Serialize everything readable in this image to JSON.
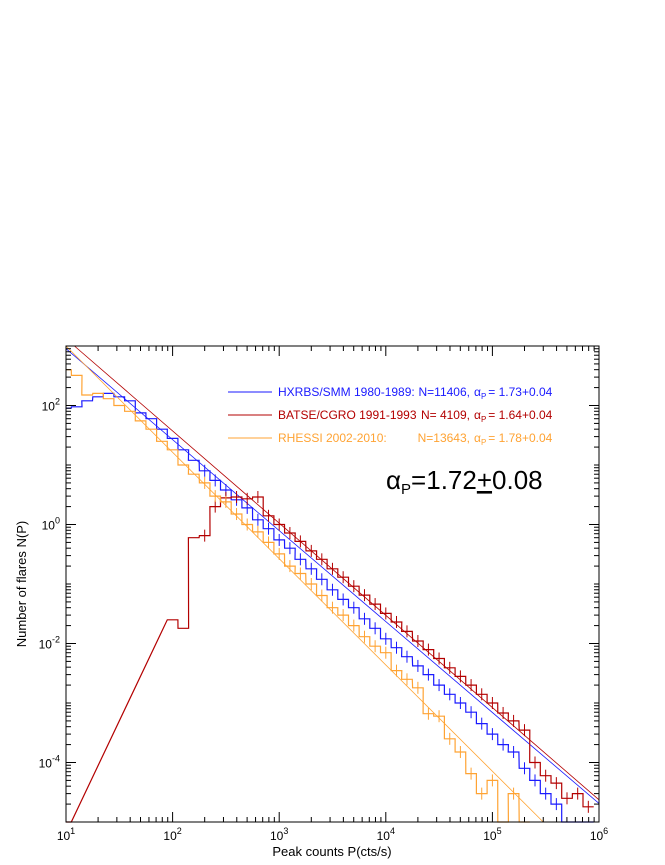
{
  "chart_data": {
    "type": "line",
    "title": "",
    "xlabel": "Peak counts P(cts/s)",
    "ylabel": "Number of flares N(P)",
    "xscale": "log",
    "yscale": "log",
    "xlim": [
      10,
      1000000
    ],
    "ylim": [
      1e-05,
      1000
    ],
    "x_ticks": [
      {
        "value": 10,
        "base": "10",
        "exp": "1"
      },
      {
        "value": 100,
        "base": "10",
        "exp": "2"
      },
      {
        "value": 1000,
        "base": "10",
        "exp": "3"
      },
      {
        "value": 10000,
        "base": "10",
        "exp": "4"
      },
      {
        "value": 100000,
        "base": "10",
        "exp": "5"
      },
      {
        "value": 1000000,
        "base": "10",
        "exp": "6"
      }
    ],
    "y_ticks": [
      {
        "value": 0.0001,
        "base": "10",
        "exp": "-4"
      },
      {
        "value": 0.01,
        "base": "10",
        "exp": "-2"
      },
      {
        "value": 1,
        "base": "10",
        "exp": "0"
      },
      {
        "value": 100,
        "base": "10",
        "exp": "2"
      }
    ],
    "grid": false,
    "legend_position": "top-right",
    "annotation": {
      "alpha": "α",
      "sub": "P",
      "text": "=1.72",
      "pm": "+",
      "value": "0.08"
    },
    "series": [
      {
        "legend_name": "HXRBS/SMM 1980-1989:",
        "legend_n": "N=11406,",
        "legend_alpha": "α",
        "legend_sub": "P",
        "legend_value": "= 1.73+0.04",
        "color": "#1a1aff",
        "fit": {
          "x": [
            10,
            1000000
          ],
          "y": [
            900,
            2.05e-05
          ]
        },
        "x": [
          10,
          12.6,
          15.8,
          20,
          25.1,
          31.6,
          39.8,
          50.1,
          63.1,
          79.4,
          100,
          126,
          158,
          200,
          251,
          316,
          398,
          501,
          631,
          794,
          1000,
          1260,
          1580,
          2000,
          2510,
          3160,
          3980,
          5010,
          6310,
          7940,
          10000,
          12600,
          15800,
          20000,
          25100,
          31600,
          39800,
          50100,
          63100,
          79400,
          100000,
          126000,
          158000,
          200000,
          251000,
          316000,
          398000,
          501000,
          631000,
          794000
        ],
        "y": [
          90,
          95,
          120,
          140,
          160,
          140,
          120,
          75,
          60,
          40,
          28,
          18,
          12,
          8,
          5.5,
          3.8,
          2.6,
          1.9,
          1.2,
          0.85,
          0.55,
          0.4,
          0.26,
          0.18,
          0.12,
          0.08,
          0.055,
          0.04,
          0.026,
          0.018,
          0.012,
          0.0085,
          0.006,
          0.0042,
          0.003,
          0.002,
          0.0014,
          0.001,
          0.0007,
          0.00045,
          0.0003,
          0.0002,
          0.00015,
          8e-05,
          5e-05,
          3e-05,
          2e-05,
          1e-05,
          1e-05,
          1e-05
        ]
      },
      {
        "legend_name": "BATSE/CGRO 1991-1993",
        "legend_n": "N= 4109,",
        "legend_alpha": "α",
        "legend_sub": "P",
        "legend_value": "= 1.64+0.04",
        "color": "#b30000",
        "fit": {
          "x": [
            12,
            1000000
          ],
          "y": [
            1050,
            2.36e-05
          ]
        },
        "x": [
          10,
          100,
          126,
          158,
          200,
          251,
          316,
          398,
          501,
          631,
          794,
          1000,
          1260,
          1580,
          2000,
          2510,
          3160,
          3980,
          5010,
          6310,
          7940,
          10000,
          12600,
          15800,
          20000,
          25100,
          31600,
          39800,
          50100,
          63100,
          79400,
          100000,
          126000,
          158000,
          200000,
          251000,
          316000,
          398000,
          501000,
          631000,
          794000
        ],
        "y": [
          1e-05,
          0.025,
          0.018,
          0.6,
          0.65,
          2.0,
          2.8,
          2.9,
          2.7,
          2.9,
          1.4,
          1.0,
          0.72,
          0.52,
          0.36,
          0.26,
          0.18,
          0.13,
          0.092,
          0.065,
          0.046,
          0.032,
          0.023,
          0.016,
          0.011,
          0.0079,
          0.0056,
          0.0039,
          0.0028,
          0.002,
          0.0014,
          0.001,
          0.00068,
          0.0005,
          0.00035,
          0.0001,
          6e-05,
          4.5e-05,
          2.5e-05,
          3e-05,
          1.8e-05
        ]
      },
      {
        "legend_name": "RHESSI 2002-2010:",
        "legend_n": "N=13643,",
        "legend_alpha": "α",
        "legend_sub": "P",
        "legend_value": "= 1.78+0.04",
        "color": "#ffa333",
        "fit": {
          "x": [
            10,
            300000
          ],
          "y": [
            1000,
            1e-05
          ]
        },
        "x": [
          10,
          12.6,
          15.8,
          20,
          25.1,
          31.6,
          39.8,
          50.1,
          63.1,
          79.4,
          100,
          126,
          158,
          200,
          251,
          316,
          398,
          501,
          631,
          794,
          1000,
          1260,
          1580,
          2000,
          2510,
          3160,
          3980,
          5010,
          6310,
          7940,
          10000,
          12600,
          15800,
          20000,
          25100,
          31600,
          39800,
          50100,
          63100,
          79400,
          100000,
          126000,
          158000,
          200000
        ],
        "y": [
          400,
          320,
          150,
          160,
          130,
          100,
          80,
          55,
          40,
          25,
          18,
          10,
          7,
          5,
          3,
          2.4,
          1.5,
          1.0,
          0.75,
          0.5,
          0.32,
          0.2,
          0.15,
          0.1,
          0.064,
          0.04,
          0.03,
          0.02,
          0.013,
          0.009,
          0.007,
          0.0035,
          0.0025,
          0.0018,
          0.00066,
          0.0006,
          0.00025,
          0.00015,
          6.5e-05,
          3e-05,
          5e-05,
          1e-05,
          3e-05,
          1e-05
        ]
      }
    ]
  }
}
